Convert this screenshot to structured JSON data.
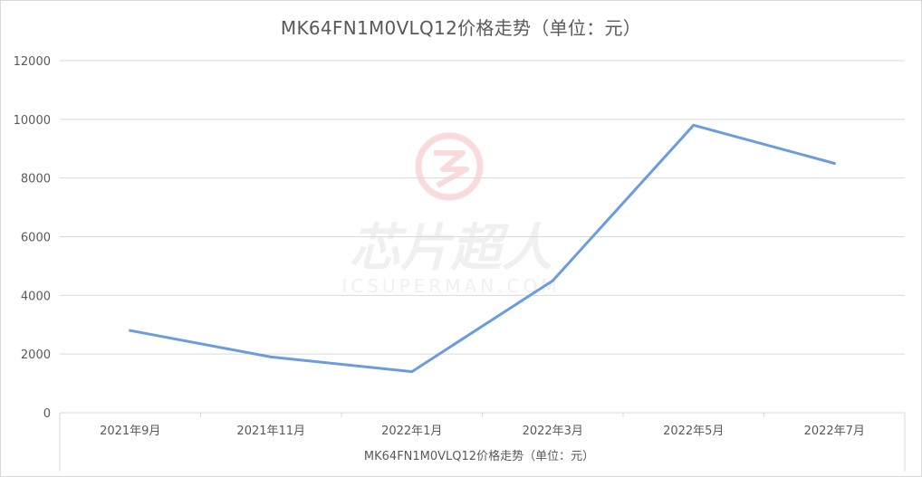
{
  "chart_data": {
    "type": "line",
    "title": "MK64FN1M0VLQ12价格走势（单位：元）",
    "xlabel": "MK64FN1M0VLQ12价格走势（单位：元）",
    "ylabel": "",
    "categories": [
      "2021年9月",
      "2021年11月",
      "2022年1月",
      "2022年3月",
      "2022年5月",
      "2022年7月"
    ],
    "series": [
      {
        "values": [
          2800,
          1900,
          1400,
          4500,
          9800,
          8500
        ],
        "color": "#6b9be0"
      }
    ],
    "ylim": [
      0,
      12000
    ],
    "yticks": [
      0,
      2000,
      4000,
      6000,
      8000,
      10000,
      12000
    ],
    "grid": true,
    "legend": "none"
  },
  "watermark": {
    "main_text": "芯片超人",
    "sub_text": "ICSUPERMAN.COM",
    "logo": "circle-lightning-logo",
    "color": "#f2a8a8"
  },
  "colors": {
    "gridline": "#d9d9d9",
    "text": "#595959",
    "line": "#6b9be0"
  }
}
